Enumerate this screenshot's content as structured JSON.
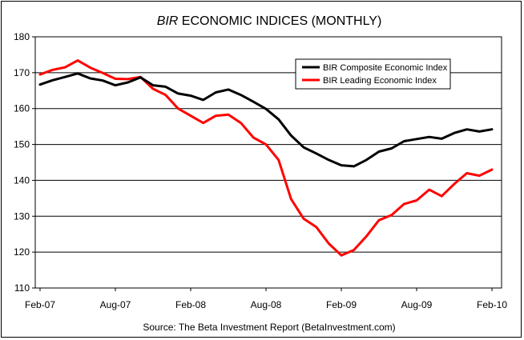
{
  "chart_data": {
    "type": "line",
    "title_italic": "BIR",
    "title_rest": " ECONOMIC INDICES (MONTHLY)",
    "source": "Source: The Beta Investment Report (BetaInvestment.com)",
    "ylim": [
      110,
      180
    ],
    "yticks": [
      "110",
      "120",
      "130",
      "140",
      "150",
      "160",
      "170",
      "180"
    ],
    "xlim": [
      0,
      36
    ],
    "xticks": [
      {
        "label": "Feb-07",
        "x": 0
      },
      {
        "label": "Aug-07",
        "x": 6
      },
      {
        "label": "Feb-08",
        "x": 12
      },
      {
        "label": "Aug-08",
        "x": 18
      },
      {
        "label": "Feb-09",
        "x": 24
      },
      {
        "label": "Aug-09",
        "x": 30
      },
      {
        "label": "Feb-10",
        "x": 36
      }
    ],
    "grid": "horizontal",
    "legend_position": "top-right",
    "series": [
      {
        "name": "BIR Composite Economic Index",
        "color": "#000000",
        "values": [
          166.7,
          167.9,
          168.8,
          169.8,
          168.4,
          167.8,
          166.5,
          167.3,
          168.7,
          166.5,
          166.1,
          164.2,
          163.6,
          162.4,
          164.5,
          165.3,
          163.8,
          161.9,
          159.9,
          157.0,
          152.5,
          149.2,
          147.5,
          145.7,
          144.2,
          143.9,
          145.7,
          148.0,
          148.9,
          150.9,
          151.5,
          152.1,
          151.6,
          153.2,
          154.2,
          153.6,
          154.2
        ]
      },
      {
        "name": "BIR Leading Economic Index",
        "color": "#ff0000",
        "values": [
          169.5,
          170.8,
          171.5,
          173.4,
          171.4,
          169.9,
          168.3,
          168.2,
          168.8,
          165.5,
          163.8,
          160.0,
          158.0,
          156.0,
          158.0,
          158.3,
          156.0,
          151.9,
          150.0,
          145.7,
          134.8,
          129.3,
          127.0,
          122.4,
          119.1,
          120.6,
          124.4,
          128.9,
          130.3,
          133.4,
          134.4,
          137.4,
          135.6,
          139.0,
          142.0,
          141.3,
          143.0
        ]
      }
    ]
  }
}
